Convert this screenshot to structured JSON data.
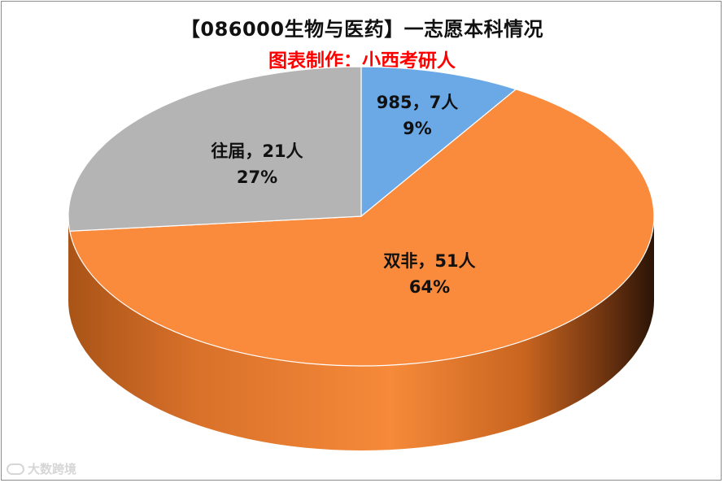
{
  "chart_data": {
    "type": "pie",
    "title": "【086000生物与医药】一志愿本科情况",
    "subtitle": "图表制作：小西考研人",
    "subtitle_color": "#ff0000",
    "style": "3d",
    "slices": [
      {
        "name": "985",
        "value": 7,
        "unit": "人",
        "percent": "9%",
        "color": "#6aa9e6",
        "label_line1": "985，7人",
        "label_line2": "9%"
      },
      {
        "name": "双非",
        "value": 51,
        "unit": "人",
        "percent": "64%",
        "color": "#fa8a3c",
        "label_line1": "双非，51人",
        "label_line2": "64%"
      },
      {
        "name": "往届",
        "value": 21,
        "unit": "人",
        "percent": "27%",
        "color": "#b4b4b4",
        "label_line1": "往届，21人",
        "label_line2": "27%"
      }
    ]
  },
  "watermark": {
    "text": "大数跨境",
    "icon": "logo-icon"
  }
}
